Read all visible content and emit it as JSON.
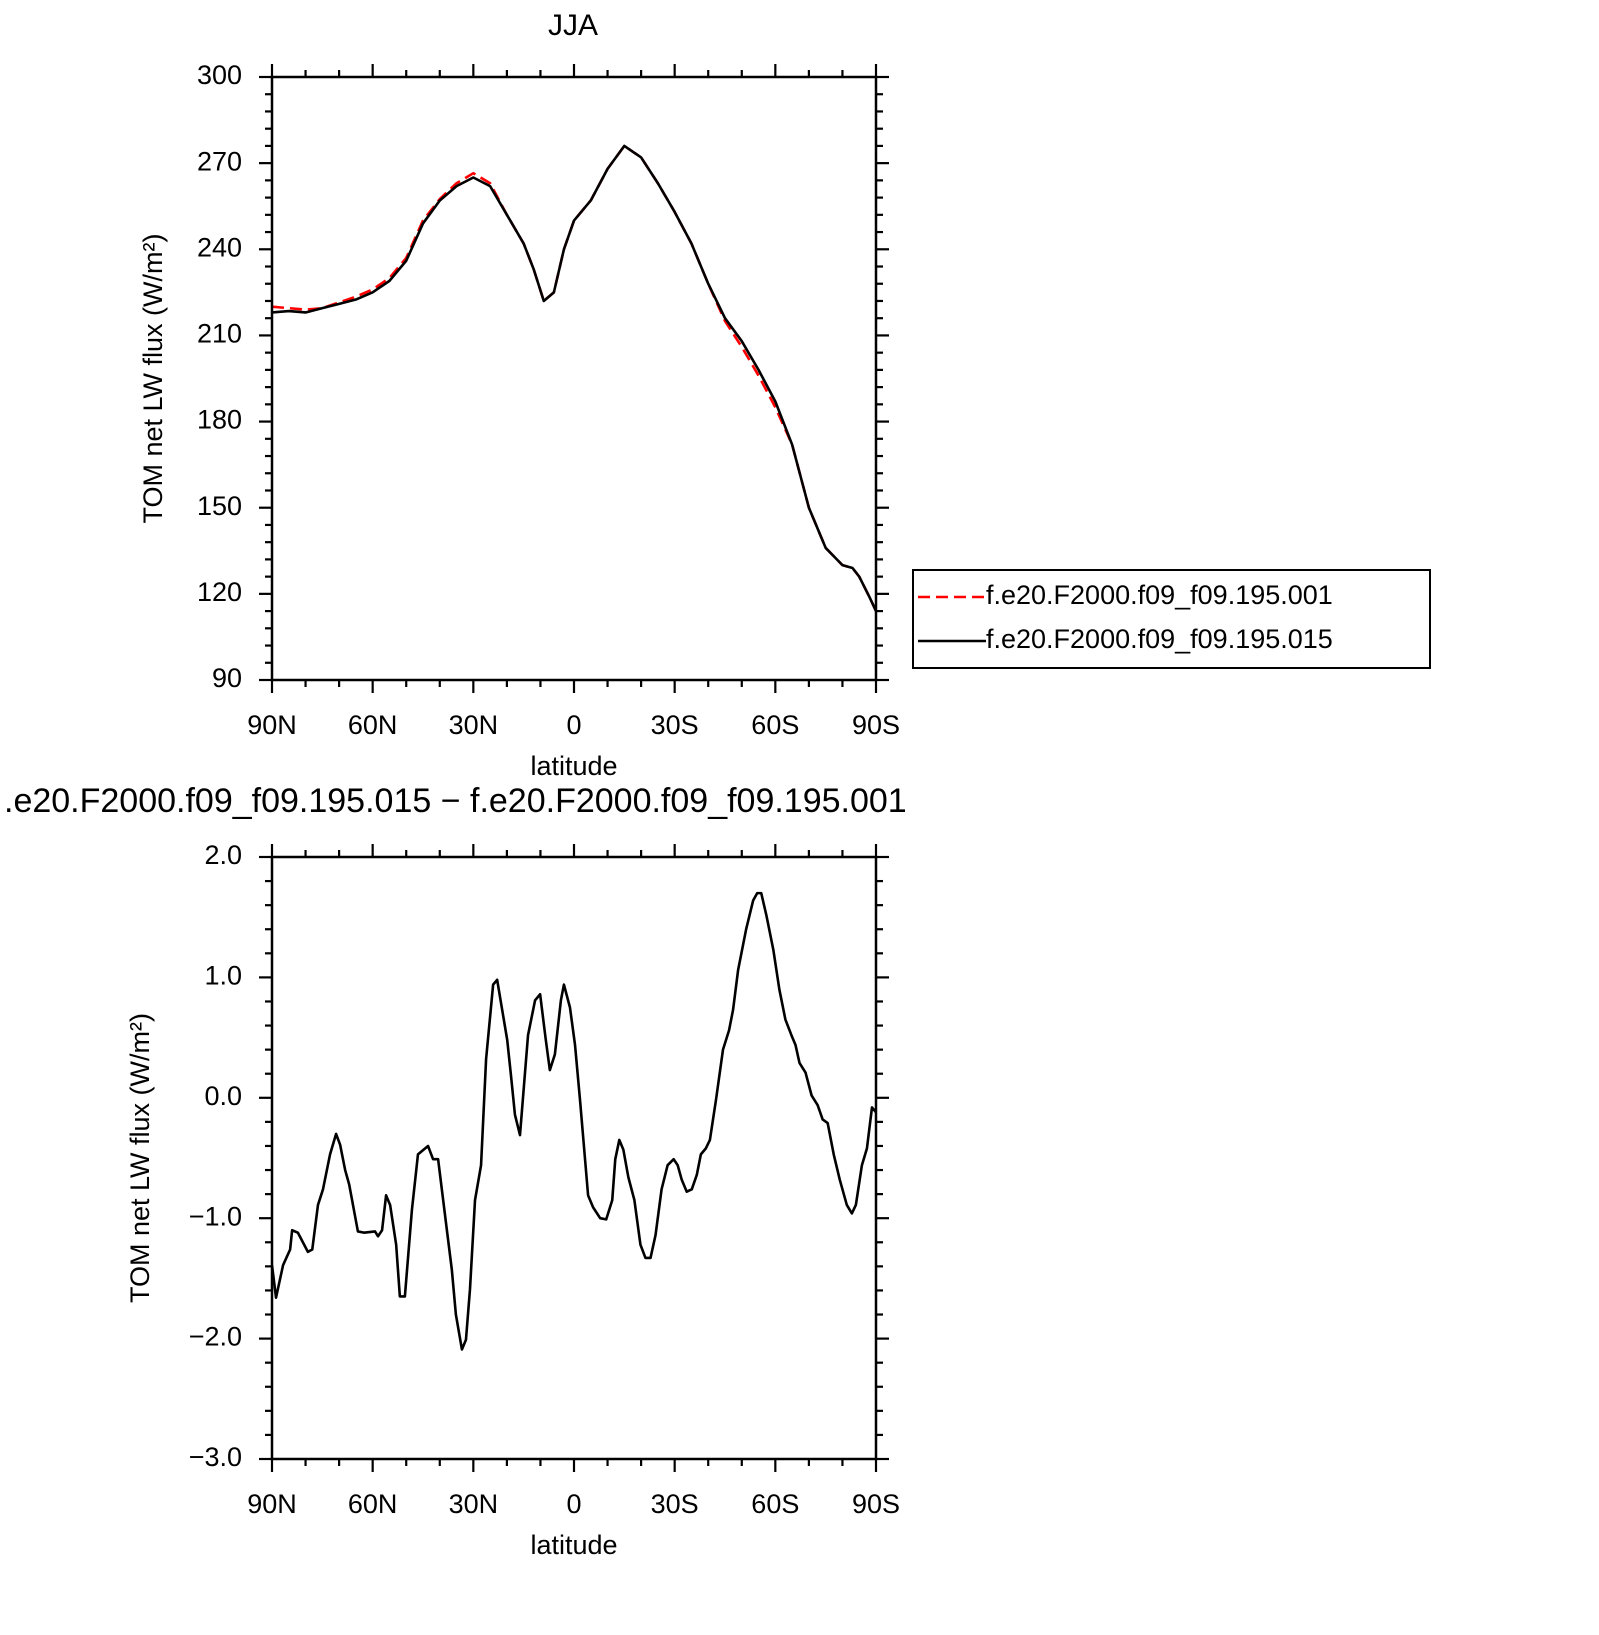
{
  "chart_data": [
    {
      "type": "line",
      "title": "JJA",
      "xlabel": "latitude",
      "ylabel": "TOM net LW flux (W/m²)",
      "x": [
        90,
        85,
        80,
        75,
        70,
        65,
        60,
        55,
        50,
        45,
        40,
        35,
        30,
        25,
        20,
        15,
        12,
        9,
        6,
        3,
        0,
        -5,
        -10,
        -15,
        -20,
        -25,
        -30,
        -35,
        -40,
        -45,
        -50,
        -55,
        -60,
        -65,
        -70,
        -75,
        -80,
        -83,
        -85,
        -88,
        -90
      ],
      "series": [
        {
          "name": "f.e20.F2000.f09_f09.195.001",
          "color": "#ff0000",
          "line_style": "dashed",
          "values": [
            220,
            219.5,
            219,
            219.5,
            221.5,
            223.5,
            226,
            230,
            237,
            250,
            257.5,
            263,
            266.5,
            263,
            252,
            242,
            233,
            222,
            225,
            240,
            250,
            257,
            268,
            276,
            272,
            263,
            253,
            242,
            228,
            215,
            206,
            196,
            185,
            172,
            150,
            136,
            130,
            129,
            126,
            119,
            114
          ]
        },
        {
          "name": "f.e20.F2000.f09_f09.195.015",
          "color": "#000000",
          "line_style": "solid",
          "values": [
            218,
            218.5,
            218,
            219.5,
            221,
            222.5,
            225,
            229,
            236,
            249,
            257,
            262,
            265,
            262,
            252,
            242,
            233,
            222,
            225,
            240,
            250,
            257,
            268,
            276,
            272,
            263,
            253,
            242,
            228,
            216,
            208,
            198,
            187,
            172,
            150,
            136,
            130,
            129,
            126,
            119,
            114
          ]
        }
      ],
      "xlim": [
        90,
        -90
      ],
      "xticks": [
        {
          "value": 90,
          "label": "90N"
        },
        {
          "value": 60,
          "label": "60N"
        },
        {
          "value": 30,
          "label": "30N"
        },
        0,
        {
          "value": -30,
          "label": "30S"
        },
        {
          "value": -60,
          "label": "60S"
        },
        {
          "value": -90,
          "label": "90S"
        }
      ],
      "xminorticks": [
        80,
        70,
        50,
        40,
        20,
        10,
        -10,
        -20,
        -40,
        -50,
        -70,
        -80
      ],
      "ylim": [
        90,
        300
      ],
      "yticks": [
        90,
        120,
        150,
        180,
        210,
        240,
        270,
        300
      ],
      "yminorticks": [
        96,
        102,
        108,
        114,
        126,
        132,
        138,
        144,
        156,
        162,
        168,
        174,
        186,
        192,
        198,
        204,
        216,
        222,
        228,
        234,
        246,
        252,
        258,
        264,
        276,
        282,
        288,
        294
      ],
      "legend": "outside-right"
    },
    {
      "type": "line",
      "title": ".e20.F2000.f09_f09.195.015 − f.e20.F2000.f09_f09.195.001",
      "xlabel": "latitude",
      "ylabel": "TOM net LW flux (W/m²)",
      "x": [
        90,
        88.8,
        86.7,
        84.6,
        84,
        82.3,
        79.3,
        78,
        76.3,
        74.8,
        72.7,
        70.9,
        69.7,
        68.2,
        67,
        64.4,
        62.6,
        59.3,
        58.4,
        57.2,
        56,
        54.8,
        53,
        51.9,
        50.4,
        48.3,
        46.5,
        43.5,
        42,
        40.5,
        38.1,
        36.4,
        35.2,
        33.4,
        32.2,
        31,
        29.5,
        27.7,
        26.2,
        24.1,
        22.9,
        21.4,
        19.9,
        18.8,
        17.6,
        16.1,
        13.7,
        11.6,
        10.1,
        8.4,
        7.2,
        5.7,
        3.9,
        3,
        1.2,
        -0.3,
        -1.8,
        -4.2,
        -5.7,
        -7.8,
        -9.6,
        -11.4,
        -12.3,
        -13.5,
        -14.7,
        -16.2,
        -18,
        -19.8,
        -21.3,
        -22.8,
        -24.3,
        -26.1,
        -27.9,
        -29.7,
        -30.9,
        -32.1,
        -33.6,
        -35.1,
        -36.6,
        -37.8,
        -39.3,
        -40.5,
        -42.3,
        -44.4,
        -46.2,
        -47.4,
        -48.9,
        -51.3,
        -53.4,
        -54.6,
        -55.8,
        -57.3,
        -59.4,
        -61.2,
        -63,
        -64.8,
        -66,
        -67.2,
        -69,
        -70.8,
        -72.6,
        -74.1,
        -75.6,
        -77.4,
        -79.2,
        -81.3,
        -82.8,
        -84,
        -85.8,
        -87.3,
        -88.8,
        -90
      ],
      "series": [
        {
          "color": "#000000",
          "line_style": "solid",
          "values": [
            -1.39,
            -1.66,
            -1.39,
            -1.26,
            -1.1,
            -1.12,
            -1.28,
            -1.26,
            -0.89,
            -0.76,
            -0.47,
            -0.3,
            -0.39,
            -0.6,
            -0.72,
            -1.11,
            -1.12,
            -1.11,
            -1.15,
            -1.1,
            -0.81,
            -0.89,
            -1.22,
            -1.65,
            -1.65,
            -0.93,
            -0.47,
            -0.4,
            -0.51,
            -0.51,
            -1.05,
            -1.43,
            -1.8,
            -2.09,
            -2.01,
            -1.59,
            -0.85,
            -0.56,
            0.32,
            0.94,
            0.98,
            0.73,
            0.48,
            0.19,
            -0.14,
            -0.31,
            0.52,
            0.81,
            0.86,
            0.48,
            0.23,
            0.36,
            0.81,
            0.94,
            0.75,
            0.44,
            -0.02,
            -0.81,
            -0.91,
            -1,
            -1.01,
            -0.85,
            -0.51,
            -0.35,
            -0.43,
            -0.66,
            -0.85,
            -1.22,
            -1.33,
            -1.33,
            -1.14,
            -0.76,
            -0.56,
            -0.51,
            -0.56,
            -0.68,
            -0.78,
            -0.76,
            -0.64,
            -0.47,
            -0.42,
            -0.35,
            -0.02,
            0.4,
            0.56,
            0.73,
            1.06,
            1.4,
            1.64,
            1.7,
            1.7,
            1.52,
            1.23,
            0.9,
            0.65,
            0.52,
            0.44,
            0.29,
            0.21,
            0.02,
            -0.06,
            -0.18,
            -0.21,
            -0.47,
            -0.68,
            -0.89,
            -0.96,
            -0.89,
            -0.56,
            -0.42,
            -0.08,
            -0.12
          ]
        }
      ],
      "xlim": [
        90,
        -90
      ],
      "xticks": [
        {
          "value": 90,
          "label": "90N"
        },
        {
          "value": 60,
          "label": "60N"
        },
        {
          "value": 30,
          "label": "30N"
        },
        0,
        {
          "value": -30,
          "label": "30S"
        },
        {
          "value": -60,
          "label": "60S"
        },
        {
          "value": -90,
          "label": "90S"
        }
      ],
      "xminorticks": [
        80,
        70,
        50,
        40,
        20,
        10,
        -10,
        -20,
        -40,
        -50,
        -70,
        -80
      ],
      "ylim": [
        -3,
        2
      ],
      "yticks": [
        {
          "value": -3,
          "label": "−3.0"
        },
        {
          "value": -2,
          "label": "−2.0"
        },
        {
          "value": -1,
          "label": "−1.0"
        },
        {
          "value": 0,
          "label": "0.0"
        },
        {
          "value": 1,
          "label": "1.0"
        },
        {
          "value": 2,
          "label": "2.0"
        }
      ],
      "yminorticks": [
        -2.8,
        -2.6,
        -2.4,
        -2.2,
        -1.8,
        -1.6,
        -1.4,
        -1.2,
        -0.8,
        -0.6,
        -0.4,
        -0.2,
        0.2,
        0.4,
        0.6,
        0.8,
        1.2,
        1.4,
        1.6,
        1.8
      ]
    }
  ]
}
